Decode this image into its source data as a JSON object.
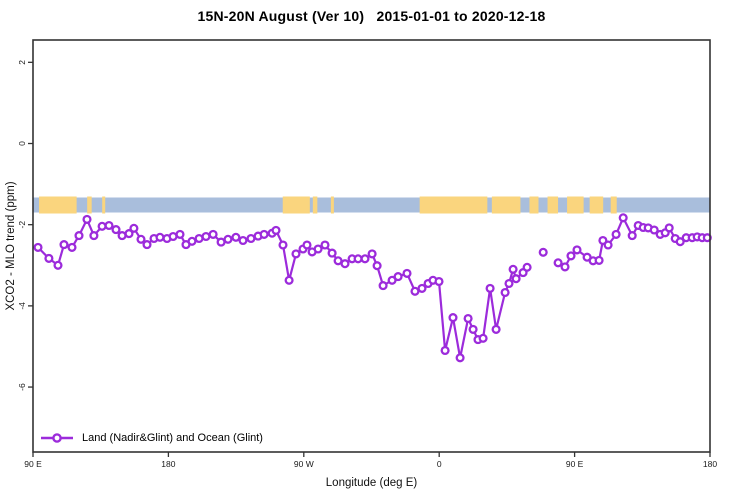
{
  "page": {
    "background": "#ffffff"
  },
  "header": {
    "title": "15N-20N August (Ver 10)   2015-01-01 to 2020-12-18"
  },
  "legend": {
    "label": "Land (Nadir&Glint) and Ocean (Glint)"
  },
  "colors": {
    "axis": "#333333",
    "tick_text": "#1a1a1a",
    "series_purple": "#9C2BDB",
    "ocean_blue": "#A9BEDC",
    "land_yellow": "#FAD57E"
  },
  "chart_data": {
    "type": "line",
    "title": "15N-20N August (Ver 10)   2015-01-01 to 2020-12-18",
    "xlabel": "Longitude (deg E)",
    "ylabel": "XCO2 - MLO trend (ppm)",
    "xlim": [
      90,
      540
    ],
    "ylim": [
      -7.6,
      2.55
    ],
    "grid": false,
    "legend_position": "bottom-left",
    "x_ticks": [
      {
        "value": 90,
        "label": "90 E"
      },
      {
        "value": 180,
        "label": "180"
      },
      {
        "value": 270,
        "label": "90 W"
      },
      {
        "value": 360,
        "label": "0"
      },
      {
        "value": 450,
        "label": "90 E"
      },
      {
        "value": 540,
        "label": "180"
      }
    ],
    "y_ticks": [
      {
        "value": 2,
        "label": "2"
      },
      {
        "value": 0,
        "label": "0"
      },
      {
        "value": -2,
        "label": "-2"
      },
      {
        "value": -4,
        "label": "-4"
      },
      {
        "value": -6,
        "label": "-6"
      }
    ],
    "coverage_band": {
      "description": "land (yellow) vs ocean (blue) strip along longitude",
      "value_range": [
        -1.7,
        -1.33
      ],
      "ocean_color": "#A9BEDC",
      "land_color": "#FAD57E",
      "land_segments_lon": [
        [
          94,
          119
        ],
        [
          126,
          129
        ],
        [
          136,
          138
        ],
        [
          256,
          274
        ],
        [
          276,
          279
        ],
        [
          288,
          290
        ],
        [
          347,
          392
        ],
        [
          395,
          414
        ],
        [
          420,
          426
        ],
        [
          432,
          439
        ],
        [
          445,
          456
        ],
        [
          460,
          469
        ],
        [
          474,
          478
        ]
      ]
    },
    "series": [
      {
        "name": "Land (Nadir&Glint) and Ocean (Glint)",
        "color": "#9C2BDB",
        "marker": "open-circle",
        "segments": [
          [
            [
              93.3,
              -2.56
            ],
            [
              100.6,
              -2.83
            ],
            [
              106.6,
              -3.0
            ],
            [
              110.6,
              -2.49
            ],
            [
              115.9,
              -2.56
            ],
            [
              120.6,
              -2.27
            ],
            [
              125.9,
              -1.87
            ],
            [
              130.5,
              -2.27
            ],
            [
              135.9,
              -2.04
            ],
            [
              140.5,
              -2.02
            ],
            [
              145.2,
              -2.12
            ],
            [
              149.2,
              -2.27
            ],
            [
              153.8,
              -2.22
            ],
            [
              157.1,
              -2.09
            ],
            [
              161.8,
              -2.36
            ],
            [
              165.8,
              -2.49
            ],
            [
              170.4,
              -2.34
            ],
            [
              174.4,
              -2.31
            ],
            [
              179.1,
              -2.34
            ],
            [
              183.1,
              -2.29
            ],
            [
              187.7,
              -2.24
            ],
            [
              191.7,
              -2.49
            ],
            [
              195.7,
              -2.41
            ],
            [
              200.4,
              -2.34
            ],
            [
              205.0,
              -2.29
            ],
            [
              209.7,
              -2.24
            ],
            [
              215.0,
              -2.43
            ],
            [
              219.6,
              -2.36
            ],
            [
              224.9,
              -2.31
            ],
            [
              229.6,
              -2.39
            ],
            [
              234.9,
              -2.34
            ],
            [
              239.6,
              -2.28
            ],
            [
              243.6,
              -2.24
            ],
            [
              248.9,
              -2.21
            ],
            [
              251.5,
              -2.14
            ],
            [
              256.2,
              -2.5
            ],
            [
              260.2,
              -3.37
            ],
            [
              264.8,
              -2.72
            ],
            [
              269.5,
              -2.6
            ],
            [
              272.1,
              -2.5
            ],
            [
              275.5,
              -2.67
            ],
            [
              279.5,
              -2.6
            ],
            [
              284.1,
              -2.5
            ],
            [
              288.8,
              -2.7
            ],
            [
              292.8,
              -2.89
            ],
            [
              297.4,
              -2.96
            ],
            [
              302.1,
              -2.84
            ],
            [
              306.1,
              -2.84
            ],
            [
              310.7,
              -2.84
            ],
            [
              315.4,
              -2.72
            ],
            [
              318.7,
              -3.01
            ],
            [
              322.7,
              -3.5
            ],
            [
              328.7,
              -3.37
            ],
            [
              332.7,
              -3.28
            ],
            [
              338.6,
              -3.2
            ],
            [
              343.9,
              -3.64
            ],
            [
              348.6,
              -3.57
            ],
            [
              352.6,
              -3.45
            ],
            [
              355.9,
              -3.37
            ],
            [
              359.9,
              -3.4
            ],
            [
              363.9,
              -5.1
            ],
            [
              369.2,
              -4.29
            ],
            [
              373.9,
              -5.28
            ],
            [
              379.2,
              -4.31
            ],
            [
              382.5,
              -4.58
            ],
            [
              385.8,
              -4.83
            ],
            [
              389.2,
              -4.8
            ],
            [
              393.8,
              -3.57
            ],
            [
              397.8,
              -4.58
            ],
            [
              403.8,
              -3.67
            ],
            [
              406.4,
              -3.45
            ],
            [
              409.1,
              -3.1
            ],
            [
              411.1,
              -3.33
            ],
            [
              415.8,
              -3.18
            ],
            [
              418.4,
              -3.05
            ]
          ],
          [
            [
              429.1,
              -2.68
            ]
          ],
          [
            [
              439.0,
              -2.94
            ],
            [
              443.6,
              -3.04
            ],
            [
              447.6,
              -2.77
            ],
            [
              451.6,
              -2.62
            ],
            [
              458.3,
              -2.8
            ],
            [
              462.3,
              -2.89
            ],
            [
              466.3,
              -2.88
            ],
            [
              468.8,
              -2.39
            ],
            [
              472.3,
              -2.5
            ],
            [
              477.6,
              -2.24
            ],
            [
              482.3,
              -1.83
            ],
            [
              488.3,
              -2.27
            ],
            [
              492.3,
              -2.02
            ],
            [
              495.6,
              -2.07
            ],
            [
              498.9,
              -2.08
            ],
            [
              502.9,
              -2.13
            ],
            [
              506.9,
              -2.24
            ],
            [
              510.2,
              -2.2
            ],
            [
              512.9,
              -2.08
            ],
            [
              516.9,
              -2.34
            ],
            [
              520.2,
              -2.42
            ],
            [
              524.2,
              -2.32
            ],
            [
              528.2,
              -2.32
            ],
            [
              531.5,
              -2.3
            ],
            [
              534.8,
              -2.32
            ],
            [
              538.2,
              -2.32
            ]
          ]
        ]
      }
    ]
  }
}
